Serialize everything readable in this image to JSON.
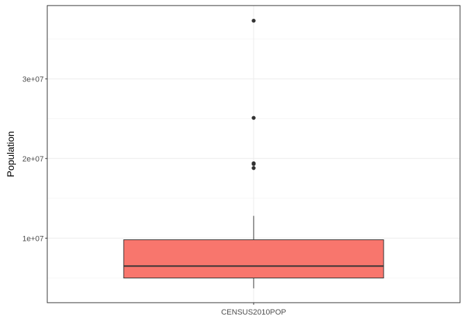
{
  "chart_data": {
    "type": "boxplot",
    "title": "",
    "xlabel": "",
    "ylabel": "Population",
    "categories": [
      "CENSUS2010POP"
    ],
    "y_ticks": [
      10000000,
      20000000,
      30000000
    ],
    "y_tick_labels": [
      "1e+07",
      "2e+07",
      "3e+07"
    ],
    "y_minor_ticks": [
      5000000,
      15000000,
      25000000,
      35000000
    ],
    "ylim": [
      1900000,
      39200000
    ],
    "grid": true,
    "legend": "none",
    "box": {
      "category": "CENSUS2010POP",
      "whisker_low": 3700000,
      "q1": 5000000,
      "median": 6500000,
      "q3": 9800000,
      "whisker_high": 12800000,
      "outliers": [
        18800000,
        19300000,
        19400000,
        25100000,
        37300000
      ]
    },
    "colors": {
      "box_fill": "#F8766D",
      "box_stroke": "#333333",
      "outlier": "#333333",
      "grid_major": "#ebebeb",
      "grid_minor": "#f5f5f5",
      "panel_border": "#333333"
    }
  }
}
